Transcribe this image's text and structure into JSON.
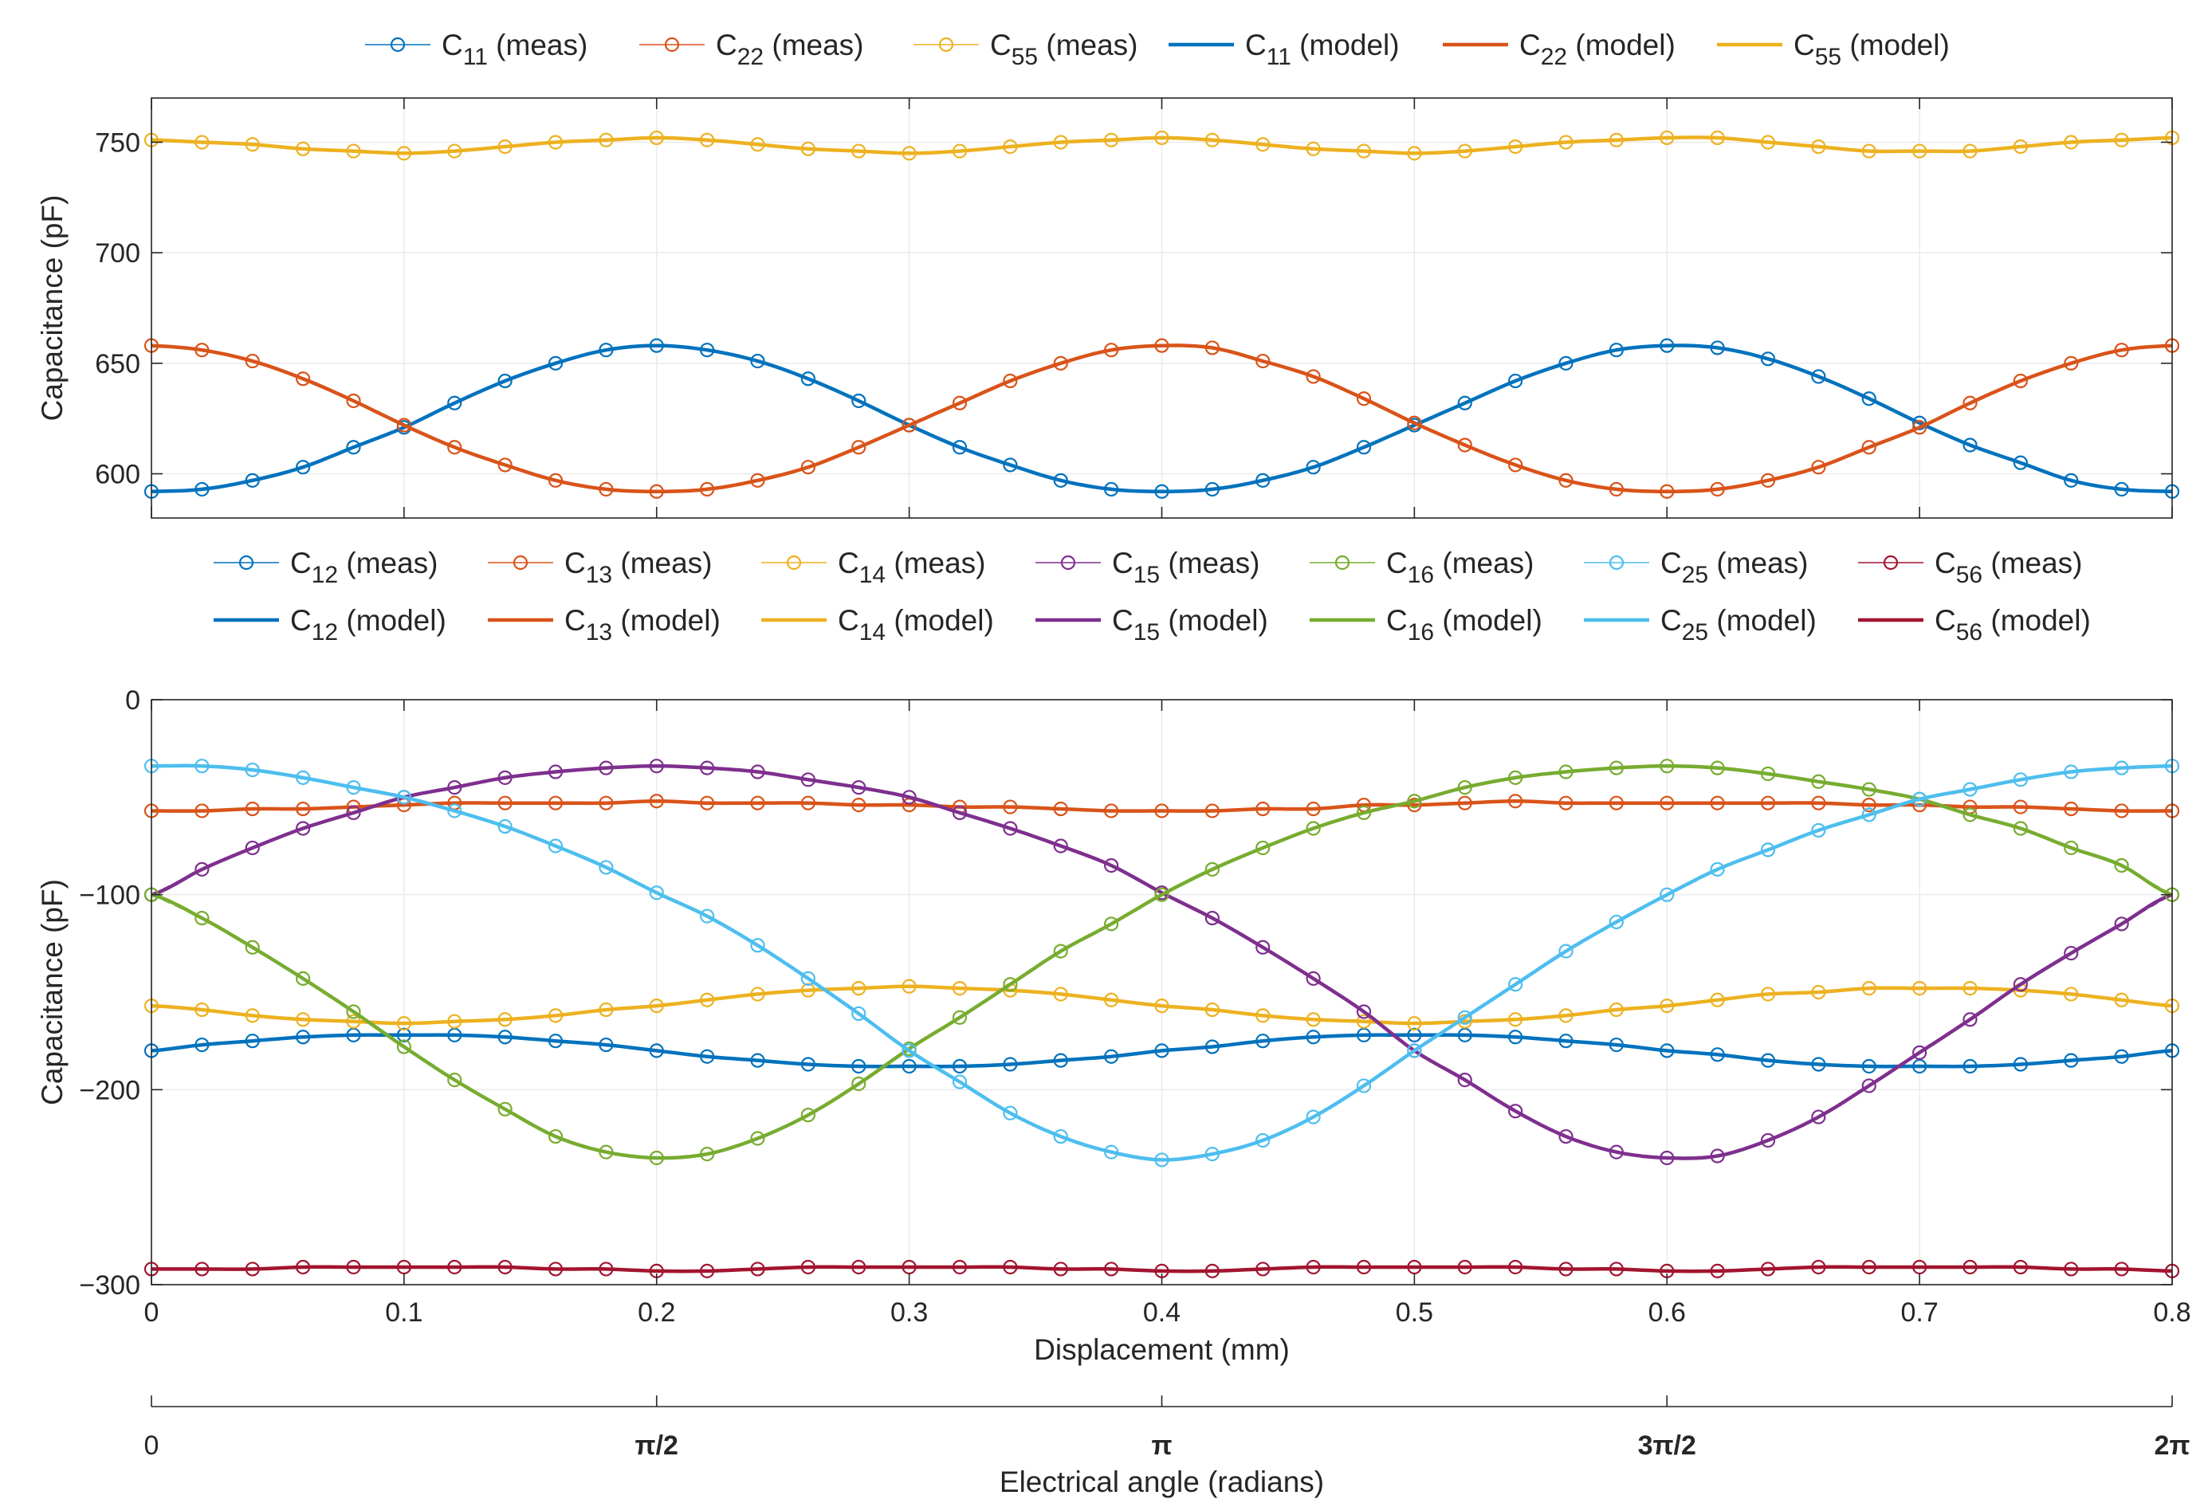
{
  "chart_data": [
    {
      "type": "line",
      "panel": "top",
      "ylabel": "Capacitance (pF)",
      "xlabel": "",
      "xlim": [
        0,
        0.8
      ],
      "ylim": [
        580,
        770
      ],
      "yticks": [
        600,
        650,
        700,
        750
      ],
      "xticks": [
        0,
        0.1,
        0.2,
        0.3,
        0.4,
        0.5,
        0.6,
        0.7,
        0.8
      ],
      "grid": true,
      "legend_placement": "top",
      "x": [
        0,
        0.02,
        0.04,
        0.06,
        0.08,
        0.1,
        0.12,
        0.14,
        0.16,
        0.18,
        0.2,
        0.22,
        0.24,
        0.26,
        0.28,
        0.3,
        0.32,
        0.34,
        0.36,
        0.38,
        0.4,
        0.42,
        0.44,
        0.46,
        0.48,
        0.5,
        0.52,
        0.54,
        0.56,
        0.58,
        0.6,
        0.62,
        0.64,
        0.66,
        0.68,
        0.7,
        0.72,
        0.74,
        0.76,
        0.78,
        0.8
      ],
      "series": [
        {
          "key": "C11",
          "sub": "11",
          "color": "#0072BD",
          "meas": [
            592,
            593,
            597,
            603,
            612,
            621,
            632,
            642,
            650,
            656,
            658,
            656,
            651,
            643,
            633,
            622,
            612,
            604,
            597,
            593,
            592,
            593,
            597,
            603,
            612,
            622,
            632,
            642,
            650,
            656,
            658,
            657,
            652,
            644,
            634,
            623,
            613,
            605,
            597,
            593,
            592
          ]
        },
        {
          "key": "C22",
          "sub": "22",
          "color": "#D95319",
          "meas": [
            658,
            656,
            651,
            643,
            633,
            622,
            612,
            604,
            597,
            593,
            592,
            593,
            597,
            603,
            612,
            622,
            632,
            642,
            650,
            656,
            658,
            657,
            651,
            644,
            634,
            623,
            613,
            604,
            597,
            593,
            592,
            593,
            597,
            603,
            612,
            621,
            632,
            642,
            650,
            656,
            658
          ]
        },
        {
          "key": "C55",
          "sub": "55",
          "color": "#EDB120",
          "meas": [
            751,
            750,
            749,
            747,
            746,
            745,
            746,
            748,
            750,
            751,
            752,
            751,
            749,
            747,
            746,
            745,
            746,
            748,
            750,
            751,
            752,
            751,
            749,
            747,
            746,
            745,
            746,
            748,
            750,
            751,
            752,
            752,
            750,
            748,
            746,
            746,
            746,
            748,
            750,
            751,
            752
          ]
        }
      ],
      "legend": [
        {
          "sub": "11",
          "suffix": "(meas)",
          "style": "meas",
          "color": "#0072BD"
        },
        {
          "sub": "22",
          "suffix": "(meas)",
          "style": "meas",
          "color": "#D95319"
        },
        {
          "sub": "55",
          "suffix": "(meas)",
          "style": "meas",
          "color": "#EDB120"
        },
        {
          "sub": "11",
          "suffix": "(model)",
          "style": "model",
          "color": "#0072BD"
        },
        {
          "sub": "22",
          "suffix": "(model)",
          "style": "model",
          "color": "#D95319"
        },
        {
          "sub": "55",
          "suffix": "(model)",
          "style": "model",
          "color": "#EDB120"
        }
      ]
    },
    {
      "type": "line",
      "panel": "bottom",
      "ylabel": "Capacitance (pF)",
      "xlabel": "Displacement (mm)",
      "xlim": [
        0,
        0.8
      ],
      "ylim": [
        -300,
        0
      ],
      "yticks": [
        0,
        -100,
        -200,
        -300
      ],
      "xticks": [
        0,
        0.1,
        0.2,
        0.3,
        0.4,
        0.5,
        0.6,
        0.7,
        0.8
      ],
      "grid": true,
      "legend_placement": "top",
      "x": [
        0,
        0.02,
        0.04,
        0.06,
        0.08,
        0.1,
        0.12,
        0.14,
        0.16,
        0.18,
        0.2,
        0.22,
        0.24,
        0.26,
        0.28,
        0.3,
        0.32,
        0.34,
        0.36,
        0.38,
        0.4,
        0.42,
        0.44,
        0.46,
        0.48,
        0.5,
        0.52,
        0.54,
        0.56,
        0.58,
        0.6,
        0.62,
        0.64,
        0.66,
        0.68,
        0.7,
        0.72,
        0.74,
        0.76,
        0.78,
        0.8
      ],
      "series": [
        {
          "key": "C12",
          "sub": "12",
          "color": "#0072BD",
          "meas": [
            -180,
            -177,
            -175,
            -173,
            -172,
            -172,
            -172,
            -173,
            -175,
            -177,
            -180,
            -183,
            -185,
            -187,
            -188,
            -188,
            -188,
            -187,
            -185,
            -183,
            -180,
            -178,
            -175,
            -173,
            -172,
            -172,
            -172,
            -173,
            -175,
            -177,
            -180,
            -182,
            -185,
            -187,
            -188,
            -188,
            -188,
            -187,
            -185,
            -183,
            -180
          ]
        },
        {
          "key": "C13",
          "sub": "13",
          "color": "#D95319",
          "meas": [
            -57,
            -57,
            -56,
            -56,
            -55,
            -54,
            -53,
            -53,
            -53,
            -53,
            -52,
            -53,
            -53,
            -53,
            -54,
            -54,
            -55,
            -55,
            -56,
            -57,
            -57,
            -57,
            -56,
            -56,
            -54,
            -54,
            -53,
            -52,
            -53,
            -53,
            -53,
            -53,
            -53,
            -53,
            -54,
            -54,
            -55,
            -55,
            -56,
            -57,
            -57
          ]
        },
        {
          "key": "C14",
          "sub": "14",
          "color": "#EDB120",
          "meas": [
            -157,
            -159,
            -162,
            -164,
            -165,
            -166,
            -165,
            -164,
            -162,
            -159,
            -157,
            -154,
            -151,
            -149,
            -148,
            -147,
            -148,
            -149,
            -151,
            -154,
            -157,
            -159,
            -162,
            -164,
            -165,
            -166,
            -165,
            -164,
            -162,
            -159,
            -157,
            -154,
            -151,
            -150,
            -148,
            -148,
            -148,
            -149,
            -151,
            -154,
            -157
          ]
        },
        {
          "key": "C15",
          "sub": "15",
          "color": "#7E2F8E",
          "meas": [
            -100,
            -87,
            -76,
            -66,
            -58,
            -50,
            -45,
            -40,
            -37,
            -35,
            -34,
            -35,
            -37,
            -41,
            -45,
            -50,
            -58,
            -66,
            -75,
            -85,
            -99,
            -112,
            -127,
            -143,
            -160,
            -180,
            -195,
            -211,
            -224,
            -232,
            -235,
            -234,
            -226,
            -214,
            -198,
            -181,
            -164,
            -146,
            -130,
            -115,
            -100
          ]
        },
        {
          "key": "C16",
          "sub": "16",
          "color": "#77AC30",
          "meas": [
            -100,
            -112,
            -127,
            -143,
            -160,
            -178,
            -195,
            -210,
            -224,
            -232,
            -235,
            -233,
            -225,
            -213,
            -197,
            -179,
            -163,
            -146,
            -129,
            -115,
            -100,
            -87,
            -76,
            -66,
            -58,
            -52,
            -45,
            -40,
            -37,
            -35,
            -34,
            -35,
            -38,
            -42,
            -46,
            -51,
            -59,
            -66,
            -76,
            -85,
            -100
          ]
        },
        {
          "key": "C25",
          "sub": "25",
          "color": "#4DBEEE",
          "meas": [
            -34,
            -34,
            -36,
            -40,
            -45,
            -50,
            -57,
            -65,
            -75,
            -86,
            -99,
            -111,
            -126,
            -143,
            -161,
            -180,
            -196,
            -212,
            -224,
            -232,
            -236,
            -233,
            -226,
            -214,
            -198,
            -180,
            -163,
            -146,
            -129,
            -114,
            -100,
            -87,
            -77,
            -67,
            -59,
            -51,
            -46,
            -41,
            -37,
            -35,
            -34
          ]
        },
        {
          "key": "C56",
          "sub": "56",
          "color": "#A2142F",
          "meas": [
            -292,
            -292,
            -292,
            -291,
            -291,
            -291,
            -291,
            -291,
            -292,
            -292,
            -293,
            -293,
            -292,
            -291,
            -291,
            -291,
            -291,
            -291,
            -292,
            -292,
            -293,
            -293,
            -292,
            -291,
            -291,
            -291,
            -291,
            -291,
            -292,
            -292,
            -293,
            -293,
            -292,
            -291,
            -291,
            -291,
            -291,
            -291,
            -292,
            -292,
            -293
          ]
        }
      ],
      "legend": [
        {
          "sub": "12",
          "suffix": "(meas)",
          "style": "meas",
          "color": "#0072BD"
        },
        {
          "sub": "13",
          "suffix": "(meas)",
          "style": "meas",
          "color": "#D95319"
        },
        {
          "sub": "14",
          "suffix": "(meas)",
          "style": "meas",
          "color": "#EDB120"
        },
        {
          "sub": "15",
          "suffix": "(meas)",
          "style": "meas",
          "color": "#7E2F8E"
        },
        {
          "sub": "16",
          "suffix": "(meas)",
          "style": "meas",
          "color": "#77AC30"
        },
        {
          "sub": "25",
          "suffix": "(meas)",
          "style": "meas",
          "color": "#4DBEEE"
        },
        {
          "sub": "56",
          "suffix": "(meas)",
          "style": "meas",
          "color": "#A2142F"
        },
        {
          "sub": "12",
          "suffix": "(model)",
          "style": "model",
          "color": "#0072BD"
        },
        {
          "sub": "13",
          "suffix": "(model)",
          "style": "model",
          "color": "#D95319"
        },
        {
          "sub": "14",
          "suffix": "(model)",
          "style": "model",
          "color": "#EDB120"
        },
        {
          "sub": "15",
          "suffix": "(model)",
          "style": "model",
          "color": "#7E2F8E"
        },
        {
          "sub": "16",
          "suffix": "(model)",
          "style": "model",
          "color": "#77AC30"
        },
        {
          "sub": "25",
          "suffix": "(model)",
          "style": "model",
          "color": "#4DBEEE"
        },
        {
          "sub": "56",
          "suffix": "(model)",
          "style": "model",
          "color": "#A2142F"
        }
      ],
      "secondary_xaxis": {
        "label": "Electrical angle (radians)",
        "ticks": [
          "0",
          "π/2",
          "π",
          "3π/2",
          "2π"
        ]
      }
    }
  ]
}
